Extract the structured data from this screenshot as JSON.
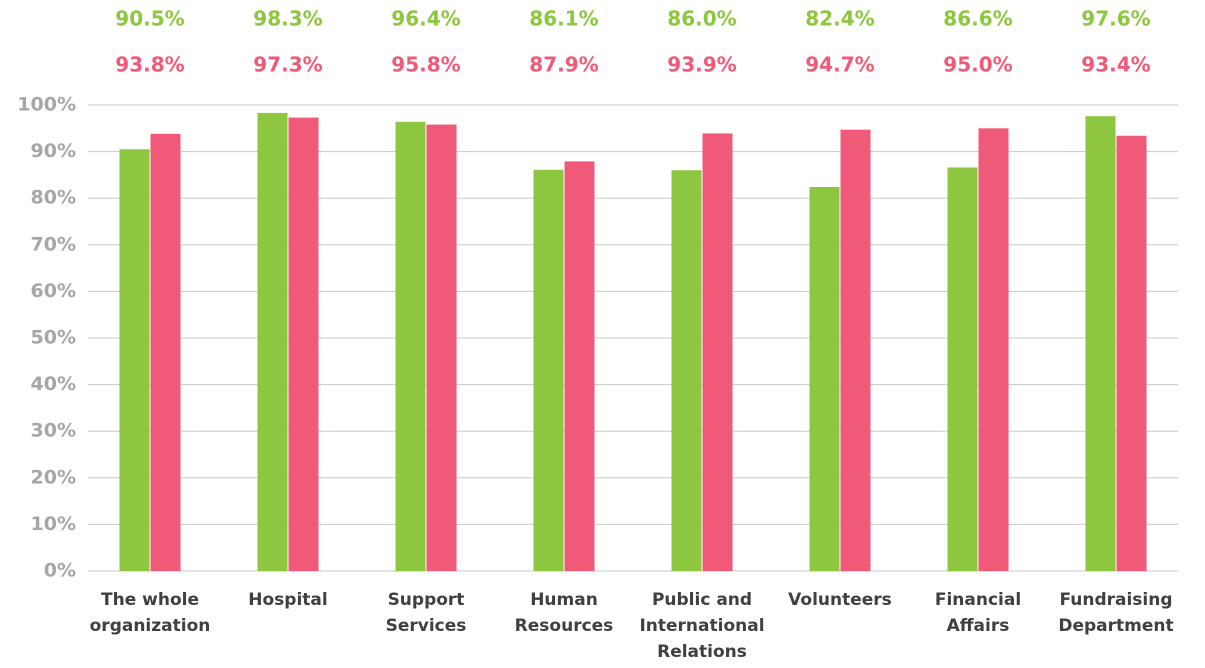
{
  "chart_data": {
    "type": "bar",
    "categories": [
      "The whole organization",
      "Hospital",
      "Support Services",
      "Human Resources",
      "Public and International Relations",
      "Volunteers",
      "Financial Affairs",
      "Fundraising Department"
    ],
    "series": [
      {
        "color": "#8dc63f",
        "values": [
          90.5,
          98.3,
          96.4,
          86.1,
          86.0,
          82.4,
          86.6,
          97.6
        ],
        "value_labels": [
          "90.5%",
          "98.3%",
          "96.4%",
          "86.1%",
          "86.0%",
          "82.4%",
          "86.6%",
          "97.6%"
        ]
      },
      {
        "color": "#f05a78",
        "values": [
          93.8,
          97.3,
          95.8,
          87.9,
          93.9,
          94.7,
          95.0,
          93.4
        ],
        "value_labels": [
          "93.8%",
          "97.3%",
          "95.8%",
          "87.9%",
          "93.9%",
          "94.7%",
          "95.0%",
          "93.4%"
        ]
      }
    ],
    "ylim": [
      0,
      100
    ],
    "yticks": [
      {
        "value": 0,
        "label": "0%"
      },
      {
        "value": 10,
        "label": "10%"
      },
      {
        "value": 20,
        "label": "20%"
      },
      {
        "value": 30,
        "label": "30%"
      },
      {
        "value": 40,
        "label": "40%"
      },
      {
        "value": 50,
        "label": "50%"
      },
      {
        "value": 60,
        "label": "60%"
      },
      {
        "value": 70,
        "label": "70%"
      },
      {
        "value": 80,
        "label": "80%"
      },
      {
        "value": 90,
        "label": "90%"
      },
      {
        "value": 100,
        "label": "100%"
      }
    ],
    "grid": true
  }
}
